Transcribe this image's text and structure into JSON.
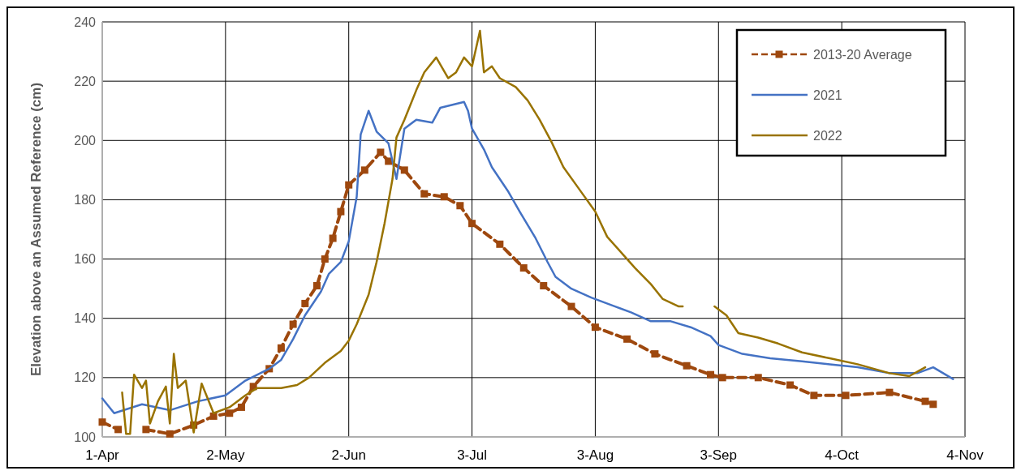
{
  "chart_data": {
    "type": "line",
    "ylabel": "Elevation above an Assumed Reference (cm)",
    "xlim": [
      "--04-01",
      "--11-04"
    ],
    "xticks": [
      {
        "value": "--04-01",
        "label": "1-Apr"
      },
      {
        "value": "--05-02",
        "label": "2-May"
      },
      {
        "value": "--06-02",
        "label": "2-Jun"
      },
      {
        "value": "--07-03",
        "label": "3-Jul"
      },
      {
        "value": "--08-03",
        "label": "3-Aug"
      },
      {
        "value": "--09-03",
        "label": "3-Sep"
      },
      {
        "value": "--10-04",
        "label": "4-Oct"
      },
      {
        "value": "--11-04",
        "label": "4-Nov"
      }
    ],
    "ylim": [
      100,
      240
    ],
    "yticks": [
      100,
      120,
      140,
      160,
      180,
      200,
      220,
      240
    ],
    "grid": true,
    "legend": "top right",
    "series": [
      {
        "name": "2013-20 Average",
        "color": "#9e480e",
        "line_style": "dashed",
        "marker": "square",
        "x": [
          "--04-01",
          "--04-05",
          "--04-09",
          "--04-12",
          "--04-18",
          "--04-24",
          "--04-29",
          "--05-03",
          "--05-06",
          "--05-09",
          "--05-13",
          "--05-16",
          "--05-19",
          "--05-22",
          "--05-25",
          "--05-27",
          "--05-29",
          "--05-31",
          "--06-02",
          "--06-06",
          "--06-10",
          "--06-12",
          "--06-16",
          "--06-21",
          "--06-26",
          "--06-30",
          "--07-03",
          "--07-10",
          "--07-16",
          "--07-21",
          "--07-28",
          "--08-03",
          "--08-11",
          "--08-18",
          "--08-26",
          "--09-01",
          "--09-04",
          "--09-13",
          "--09-21",
          "--09-27",
          "--10-05",
          "--10-16",
          "--10-25",
          "--10-27"
        ],
        "values": [
          105,
          102.5,
          null,
          102.5,
          101,
          104,
          107,
          108,
          110,
          117,
          123,
          130,
          138,
          145,
          151,
          160,
          167,
          176,
          185,
          190,
          196,
          193,
          190,
          182,
          181,
          178,
          172,
          165,
          157,
          151,
          144,
          137,
          133,
          128,
          124,
          121,
          120,
          120,
          117.5,
          114,
          114,
          115,
          112,
          111
        ]
      },
      {
        "name": "2021",
        "color": "#4472c4",
        "line_style": "solid",
        "marker": "none",
        "x": [
          "--04-01",
          "--04-04",
          "--04-11",
          "--04-18",
          "--04-25",
          "--05-02",
          "--05-07",
          "--05-13",
          "--05-16",
          "--05-19",
          "--05-22",
          "--05-26",
          "--05-28",
          "--05-31",
          "--06-02",
          "--06-04",
          "--06-05",
          "--06-07",
          "--06-09",
          "--06-12",
          "--06-14",
          "--06-16",
          "--06-19",
          "--06-23",
          "--06-25",
          "--07-01",
          "--07-02",
          "--07-03",
          "--07-06",
          "--07-08",
          "--07-12",
          "--07-15",
          "--07-19",
          "--07-22",
          "--07-24",
          "--07-28",
          "--08-02",
          "--08-08",
          "--08-12",
          "--08-17",
          "--08-22",
          "--08-27",
          "--09-01",
          "--09-03",
          "--09-09",
          "--09-16",
          "--09-24",
          "--10-01",
          "--10-08",
          "--10-16",
          "--10-23",
          "--10-27",
          "--11-01"
        ],
        "values": [
          113,
          108,
          111,
          109,
          112,
          114,
          119,
          123,
          126,
          133,
          141,
          149,
          155,
          159,
          166,
          181,
          202,
          210,
          203,
          199,
          187,
          204,
          207,
          206,
          211,
          213,
          210,
          204,
          197,
          191,
          183,
          176,
          167,
          159,
          154,
          150,
          147,
          144,
          142,
          139,
          139,
          137,
          134,
          131,
          128,
          126.5,
          125.5,
          124.5,
          123.5,
          121.5,
          121.5,
          123.5,
          119.5
        ]
      },
      {
        "name": "2022",
        "color": "#997300",
        "line_style": "solid",
        "marker": "none",
        "x": [
          "--04-06",
          "--04-07",
          "--04-08",
          "--04-09",
          "--04-11",
          "--04-12",
          "--04-13",
          "--04-15",
          "--04-17",
          "--04-18",
          "--04-19",
          "--04-20",
          "--04-22",
          "--04-24",
          "--04-26",
          "--04-29",
          "--05-03",
          "--05-07",
          "--05-10",
          "--05-16",
          "--05-20",
          "--05-23",
          "--05-27",
          "--05-31",
          "--06-02",
          "--06-04",
          "--06-07",
          "--06-09",
          "--06-11",
          "--06-13",
          "--06-14",
          "--06-16",
          "--06-19",
          "--06-21",
          "--06-24",
          "--06-27",
          "--06-29",
          "--07-01",
          "--07-03",
          "--07-05",
          "--07-06",
          "--07-08",
          "--07-10",
          "--07-14",
          "--07-17",
          "--07-20",
          "--07-23",
          "--07-26",
          "--07-30",
          "--08-03",
          "--08-06",
          "--08-10",
          "--08-13",
          "--08-17",
          "--08-20",
          "--08-24",
          "--08-25",
          "--08-29",
          "--09-02",
          "--09-05",
          "--09-08",
          "--09-13",
          "--09-18",
          "--09-24",
          "--10-01",
          "--10-08",
          "--10-16",
          "--10-21",
          "--10-25"
        ],
        "values": [
          115,
          101,
          101,
          121,
          116.5,
          119,
          104.5,
          112,
          117,
          104.5,
          128,
          116.5,
          119,
          101.5,
          118,
          108,
          110,
          114,
          116.5,
          116.5,
          117.5,
          120,
          125,
          129,
          132.5,
          138,
          148,
          159,
          172,
          187,
          201,
          207,
          217,
          223,
          228,
          221,
          223,
          228,
          225,
          237,
          223,
          225,
          221,
          218,
          213.5,
          207,
          199.5,
          191,
          183.5,
          176,
          167.5,
          161.5,
          157,
          151.5,
          146.5,
          144,
          144,
          null,
          144,
          141,
          135,
          133.5,
          131.5,
          128.5,
          126.5,
          124.5,
          121.5,
          120.5,
          123.5
        ]
      }
    ]
  }
}
